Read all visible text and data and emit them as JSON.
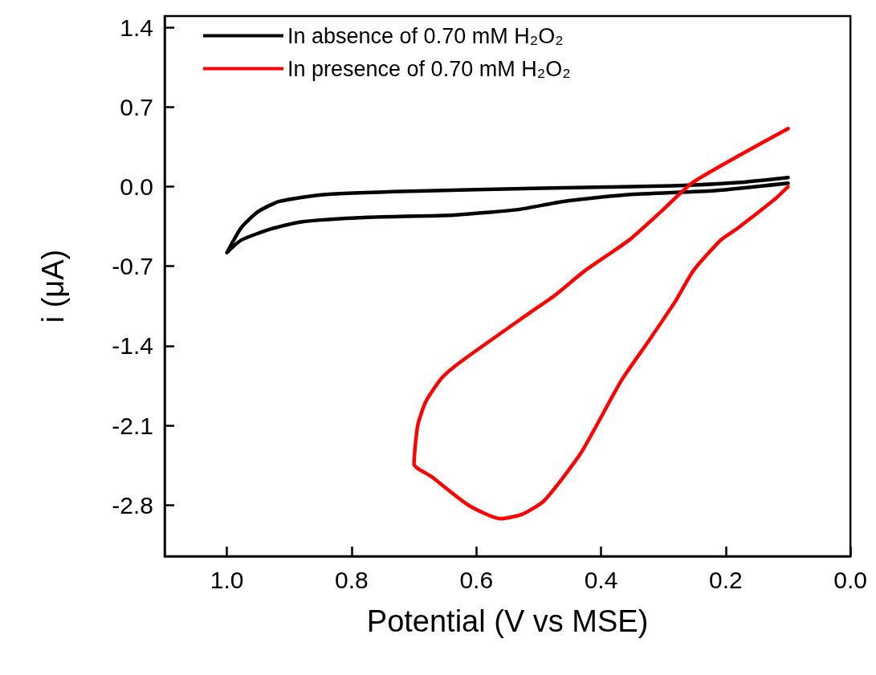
{
  "chart_data": {
    "type": "line",
    "xlabel": "Potential (V vs MSE)",
    "ylabel": "i (μA)",
    "xlim": [
      1.1,
      0
    ],
    "xticks": [
      {
        "value": 1,
        "label": "1.0"
      },
      0.8,
      0.6,
      0.4,
      0.2,
      {
        "value": 0,
        "label": "0.0"
      }
    ],
    "ylim": [
      -3.25,
      1.5
    ],
    "yticks": [
      1.4,
      0.7,
      {
        "value": 0,
        "label": "0.0"
      },
      -0.7,
      -1.4,
      -2.1,
      -2.8
    ],
    "grid": false,
    "legend": "top left",
    "marker": "none",
    "line_style": "solid",
    "series": [
      {
        "name": "In absence of 0.70 mM H₂O₂",
        "color": "#000000",
        "x": [
          0.1,
          0.182,
          0.286,
          0.495,
          0.705,
          0.845,
          0.916,
          0.95,
          0.977,
          1.0,
          0.977,
          0.928,
          0.881,
          0.775,
          0.636,
          0.531,
          0.46,
          0.356,
          0.217,
          0.1
        ],
        "values": [
          0.08,
          0.035,
          0.007,
          -0.014,
          -0.04,
          -0.07,
          -0.13,
          -0.22,
          -0.36,
          -0.58,
          -0.47,
          -0.37,
          -0.31,
          -0.27,
          -0.25,
          -0.2,
          -0.13,
          -0.07,
          -0.035,
          0.03
        ]
      },
      {
        "name": "In presence of 0.70 mM H₂O₂",
        "color": "#ff0000",
        "x": [
          0.1,
          0.252,
          0.3,
          0.355,
          0.426,
          0.475,
          0.517,
          0.625,
          0.655,
          0.681,
          0.694,
          0.7,
          0.672,
          0.613,
          0.561,
          0.526,
          0.491,
          0.432,
          0.368,
          0.324,
          0.281,
          0.252,
          0.208,
          0.182,
          0.119,
          0.1
        ],
        "values": [
          0.51,
          0.04,
          -0.2,
          -0.47,
          -0.74,
          -0.96,
          -1.12,
          -1.54,
          -1.68,
          -1.89,
          -2.1,
          -2.44,
          -2.55,
          -2.8,
          -2.92,
          -2.88,
          -2.76,
          -2.34,
          -1.71,
          -1.36,
          -1.01,
          -0.74,
          -0.47,
          -0.37,
          -0.1,
          0.0
        ]
      }
    ]
  }
}
